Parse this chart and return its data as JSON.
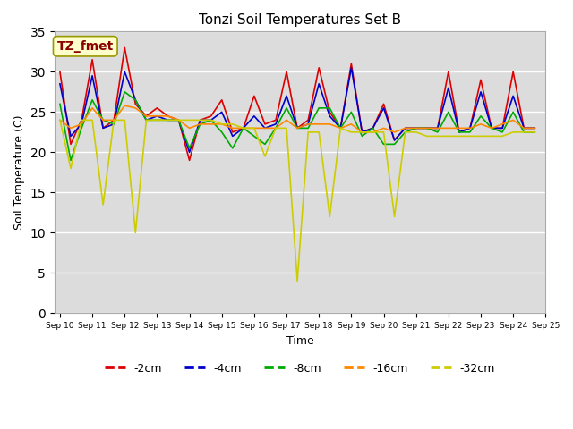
{
  "title": "Tonzi Soil Temperatures Set B",
  "xlabel": "Time",
  "ylabel": "Soil Temperature (C)",
  "ylim": [
    0,
    35
  ],
  "yticks": [
    0,
    5,
    10,
    15,
    20,
    25,
    30,
    35
  ],
  "x_tick_positions": [
    0,
    3,
    6,
    9,
    12,
    15,
    18,
    21,
    24,
    27,
    30,
    33,
    36,
    39,
    42,
    45
  ],
  "x_labels": [
    "Sep 10",
    "Sep 11",
    "Sep 12",
    "Sep 13",
    "Sep 14",
    "Sep 15",
    "Sep 16",
    "Sep 17",
    "Sep 18",
    "Sep 19",
    "Sep 20",
    "Sep 21",
    "Sep 22",
    "Sep 23",
    "Sep 24",
    "Sep 25"
  ],
  "annotation_label": "TZ_fmet",
  "annotation_color": "#8B0000",
  "annotation_bg": "#FFFFCC",
  "plot_bg": "#DCDCDC",
  "series_colors": {
    "-2cm": "#DD0000",
    "-4cm": "#0000CC",
    "-8cm": "#00AA00",
    "-16cm": "#FF8800",
    "-32cm": "#CCCC00"
  },
  "d_2cm": [
    30.0,
    21.0,
    24.0,
    31.5,
    23.0,
    24.0,
    33.0,
    26.0,
    24.5,
    25.5,
    24.5,
    24.0,
    19.0,
    24.0,
    24.5,
    26.5,
    22.5,
    23.0,
    27.0,
    23.5,
    24.0,
    30.0,
    23.0,
    24.0,
    30.5,
    25.0,
    23.0,
    31.0,
    22.5,
    23.0,
    26.0,
    21.5,
    23.0,
    23.0,
    23.0,
    23.0,
    30.0,
    22.5,
    23.0,
    29.0,
    23.0,
    23.0,
    30.0,
    23.0,
    23.0
  ],
  "d_4cm": [
    28.5,
    22.0,
    23.5,
    29.5,
    23.0,
    23.5,
    30.0,
    26.5,
    24.0,
    24.5,
    24.0,
    24.0,
    20.0,
    24.0,
    24.0,
    25.0,
    22.0,
    23.0,
    24.5,
    23.0,
    23.5,
    27.0,
    23.0,
    23.5,
    28.5,
    24.5,
    23.0,
    30.5,
    22.5,
    23.0,
    25.5,
    21.5,
    23.0,
    23.0,
    23.0,
    23.0,
    28.0,
    22.5,
    23.0,
    27.5,
    23.0,
    23.0,
    27.0,
    23.0,
    23.0
  ],
  "d_8cm": [
    26.0,
    19.0,
    23.0,
    26.5,
    24.0,
    23.5,
    27.5,
    26.5,
    24.0,
    24.0,
    24.0,
    24.0,
    20.5,
    23.5,
    24.0,
    22.5,
    20.5,
    23.0,
    22.0,
    21.0,
    23.0,
    25.5,
    23.0,
    23.0,
    25.5,
    25.5,
    23.0,
    25.0,
    22.0,
    23.0,
    21.0,
    21.0,
    22.5,
    23.0,
    23.0,
    22.5,
    25.0,
    22.5,
    22.5,
    24.5,
    23.0,
    22.5,
    25.0,
    22.5,
    22.5
  ],
  "d_16cm": [
    24.0,
    23.0,
    23.5,
    25.5,
    24.0,
    24.0,
    25.8,
    25.5,
    24.5,
    24.5,
    24.5,
    24.0,
    23.0,
    23.5,
    23.5,
    23.5,
    23.0,
    23.0,
    23.0,
    23.0,
    23.0,
    24.0,
    23.0,
    23.5,
    23.5,
    23.5,
    23.0,
    23.5,
    22.5,
    22.5,
    23.0,
    22.5,
    23.0,
    23.0,
    23.0,
    23.0,
    23.0,
    23.0,
    23.0,
    23.5,
    23.0,
    23.5,
    24.0,
    23.0,
    23.0
  ],
  "d_32cm": [
    24.0,
    18.0,
    24.0,
    24.0,
    13.5,
    24.0,
    24.0,
    10.0,
    24.0,
    24.0,
    24.0,
    24.0,
    24.0,
    24.0,
    24.0,
    23.5,
    23.5,
    23.0,
    23.0,
    19.5,
    23.0,
    23.0,
    4.0,
    22.5,
    22.5,
    12.0,
    23.0,
    22.5,
    22.5,
    22.5,
    22.5,
    12.0,
    22.5,
    22.5,
    22.0,
    22.0,
    22.0,
    22.0,
    22.0,
    22.0,
    22.0,
    22.0,
    22.5,
    22.5,
    22.5
  ]
}
